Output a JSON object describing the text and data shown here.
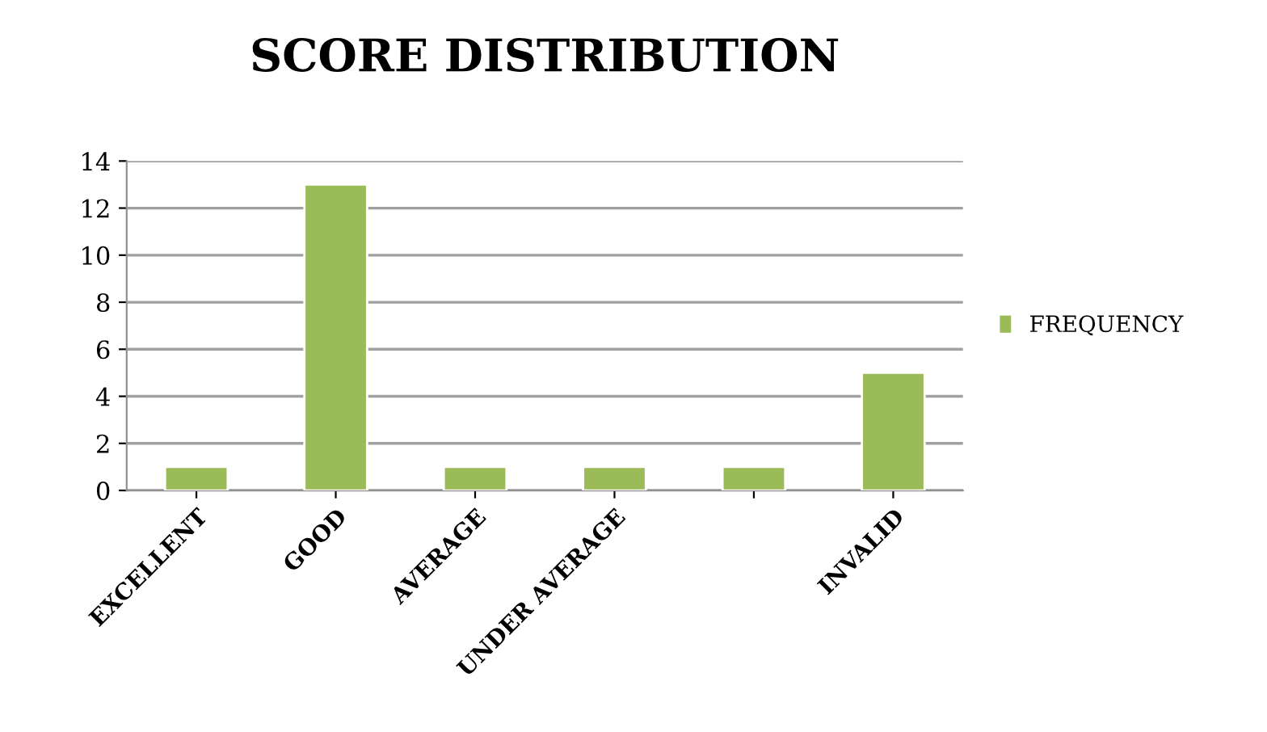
{
  "chart_data": {
    "type": "bar",
    "title": "SCORE DISTRIBUTION",
    "categories": [
      "EXCELLENT",
      "GOOD",
      "AVERAGE",
      "UNDER AVERAGE",
      null,
      "INVALID"
    ],
    "series": [
      {
        "name": "FREQUENCY",
        "color": "#9bbb59",
        "values": [
          1,
          13,
          1,
          1,
          1,
          5
        ]
      }
    ],
    "ylim": [
      0,
      14
    ],
    "yticks": [
      0,
      2,
      4,
      6,
      8,
      10,
      12,
      14
    ],
    "grid": "y",
    "legend": "right"
  }
}
